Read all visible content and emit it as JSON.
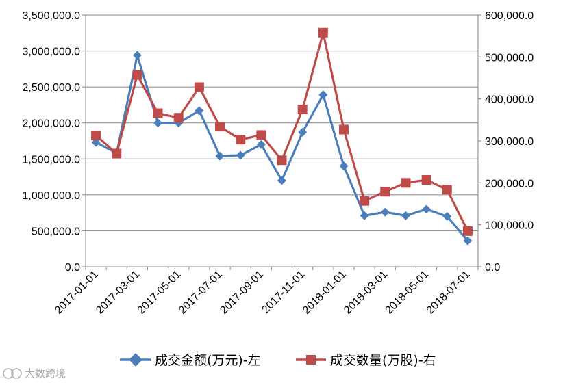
{
  "chart_data": {
    "type": "line",
    "categories": [
      "2017-01-01",
      "2017-02-01",
      "2017-03-01",
      "2017-04-01",
      "2017-05-01",
      "2017-06-01",
      "2017-07-01",
      "2017-08-01",
      "2017-09-01",
      "2017-10-01",
      "2017-11-01",
      "2017-12-01",
      "2018-01-01",
      "2018-02-01",
      "2018-03-01",
      "2018-04-01",
      "2018-05-01",
      "2018-06-01",
      "2018-07-01"
    ],
    "x_tick_labels": [
      "2017-01-01",
      "2017-03-01",
      "2017-05-01",
      "2017-07-01",
      "2017-09-01",
      "2017-11-01",
      "2018-01-01",
      "2018-03-01",
      "2018-05-01",
      "2018-07-01"
    ],
    "y_left": {
      "ylim": [
        0,
        3500000
      ],
      "ticks": [
        "0.0",
        "500,000.0",
        "1,000,000.0",
        "1,500,000.0",
        "2,000,000.0",
        "2,500,000.0",
        "3,000,000.0",
        "3,500,000.0"
      ]
    },
    "y_right": {
      "ylim": [
        0,
        600000
      ],
      "ticks": [
        "0.0",
        "100,000.0",
        "200,000.0",
        "300,000.0",
        "400,000.0",
        "500,000.0",
        "600,000.0"
      ]
    },
    "grid": "horizontal",
    "legend_position": "bottom",
    "series": [
      {
        "name": "成交金额(万元)-左",
        "axis": "left",
        "marker": "diamond",
        "color": "#4a7ebb",
        "values": [
          1730000,
          1580000,
          2940000,
          2000000,
          2000000,
          2170000,
          1540000,
          1550000,
          1700000,
          1200000,
          1870000,
          2390000,
          1400000,
          710000,
          760000,
          710000,
          800000,
          700000,
          360000
        ]
      },
      {
        "name": "成交数量(万股)-右",
        "axis": "right",
        "marker": "square",
        "color": "#be4b48",
        "values": [
          313000,
          270000,
          457000,
          366000,
          355000,
          428000,
          334000,
          303000,
          314000,
          254000,
          375000,
          558000,
          327000,
          157000,
          179000,
          200000,
          207000,
          184000,
          85000
        ]
      }
    ]
  },
  "watermark": {
    "text": "大数跨境"
  }
}
